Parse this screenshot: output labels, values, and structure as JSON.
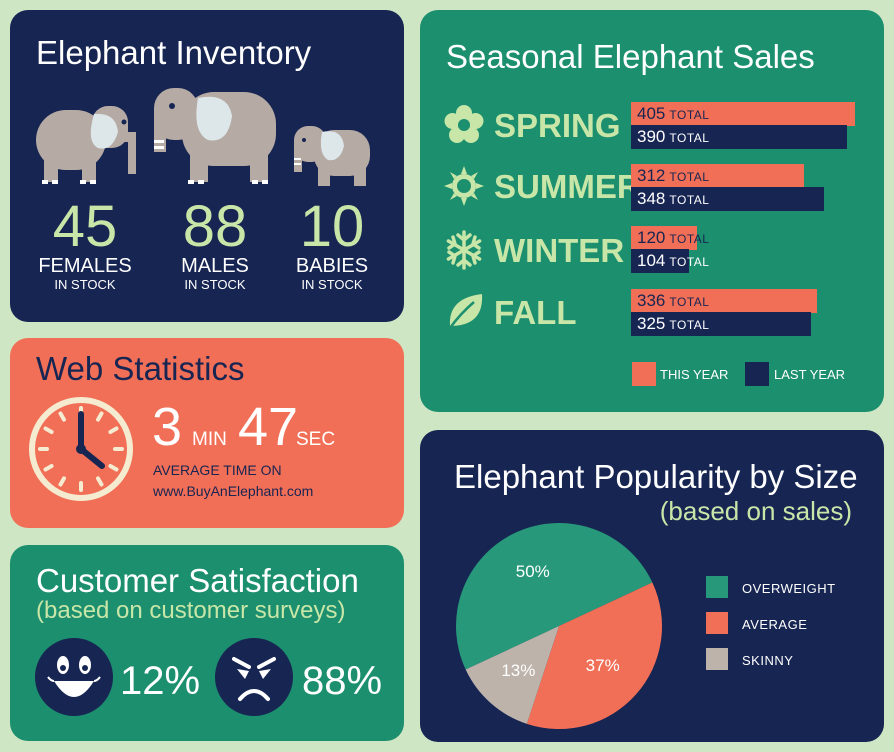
{
  "colors": {
    "navy": "#172552",
    "green": "#1c8f6e",
    "coral": "#f26f57",
    "light_green": "#c8e6a8",
    "pie_green": "#27997a",
    "pie_gray": "#bdb3ab",
    "elephant_gray": "#b5aaa4"
  },
  "inventory": {
    "title": "Elephant Inventory",
    "items": [
      {
        "icon": "elephant-female-icon",
        "count": "45",
        "label": "FEMALES",
        "sub": "IN STOCK"
      },
      {
        "icon": "elephant-male-icon",
        "count": "88",
        "label": "MALES",
        "sub": "IN STOCK"
      },
      {
        "icon": "elephant-baby-icon",
        "count": "10",
        "label": "BABIES",
        "sub": "IN STOCK"
      }
    ]
  },
  "web_stats": {
    "title": "Web Statistics",
    "icon": "clock-icon",
    "minutes": "3",
    "min_unit": "MIN",
    "seconds": "47",
    "sec_unit": "SEC",
    "caption_line1": "AVERAGE TIME ON",
    "caption_line2": "www.BuyAnElephant.com"
  },
  "satisfaction": {
    "title": "Customer Satisfaction",
    "subtitle": "(based on customer surveys)",
    "happy": {
      "icon": "happy-face-icon",
      "percent": "12%"
    },
    "angry": {
      "icon": "angry-face-icon",
      "percent": "88%"
    }
  },
  "chart_data": [
    {
      "type": "bar",
      "title": "Seasonal Elephant Sales",
      "orientation": "horizontal",
      "categories": [
        "SPRING",
        "SUMMER",
        "WINTER",
        "FALL"
      ],
      "category_icons": [
        "flower-icon",
        "sun-icon",
        "snowflake-icon",
        "leaf-icon"
      ],
      "value_suffix": "TOTAL",
      "xlim": [
        0,
        410
      ],
      "series": [
        {
          "name": "THIS YEAR",
          "color": "#f26f57",
          "values": [
            405,
            312,
            120,
            336
          ]
        },
        {
          "name": "LAST YEAR",
          "color": "#172552",
          "values": [
            390,
            348,
            104,
            325
          ]
        }
      ],
      "legend": "bottom"
    },
    {
      "type": "pie",
      "title": "Elephant Popularity by Size",
      "subtitle": "(based on sales)",
      "slices": [
        {
          "label": "OVERWEIGHT",
          "value": 50,
          "display": "50%",
          "color": "#27997a"
        },
        {
          "label": "AVERAGE",
          "value": 37,
          "display": "37%",
          "color": "#f26f57"
        },
        {
          "label": "SKINNY",
          "value": 13,
          "display": "13%",
          "color": "#bdb3ab"
        }
      ],
      "legend": "right"
    }
  ]
}
